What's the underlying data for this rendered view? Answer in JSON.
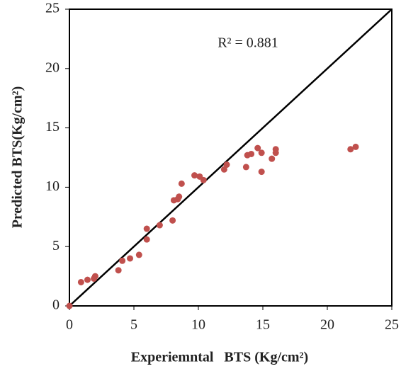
{
  "chart_data": {
    "type": "scatter",
    "x_label": "Experiemntal   BTS (Kg/cm²)",
    "y_label": "Predicted BTS(Kg/cm²)",
    "annotation": "R² = 0.881",
    "series": [
      {
        "color": "#c0504d",
        "x": [
          0,
          0.9,
          1.4,
          1.9,
          2.0,
          3.8,
          4.1,
          4.7,
          5.4,
          6.0,
          6.0,
          7.0,
          8.0,
          8.1,
          8.4,
          8.5,
          8.7,
          9.7,
          10.1,
          10.4,
          12.0,
          12.2,
          13.7,
          13.8,
          14.1,
          14.6,
          14.9,
          14.9,
          15.7,
          16.0,
          16.0,
          21.8,
          22.2
        ],
        "values": [
          0,
          2.0,
          2.2,
          2.3,
          2.5,
          3.0,
          3.8,
          4.0,
          4.3,
          5.6,
          6.5,
          6.8,
          7.2,
          8.9,
          9.0,
          9.2,
          10.3,
          11.0,
          10.9,
          10.6,
          11.5,
          11.9,
          11.7,
          12.7,
          12.8,
          13.3,
          12.9,
          11.3,
          12.4,
          12.9,
          13.2,
          13.2,
          13.4
        ]
      }
    ],
    "xlim": [
      0,
      25
    ],
    "xticks": [
      0,
      5,
      10,
      15,
      20,
      25
    ],
    "ylim": [
      0,
      25
    ],
    "yticks": [
      0,
      5,
      10,
      15,
      20,
      25
    ],
    "line_color": "#000000"
  }
}
